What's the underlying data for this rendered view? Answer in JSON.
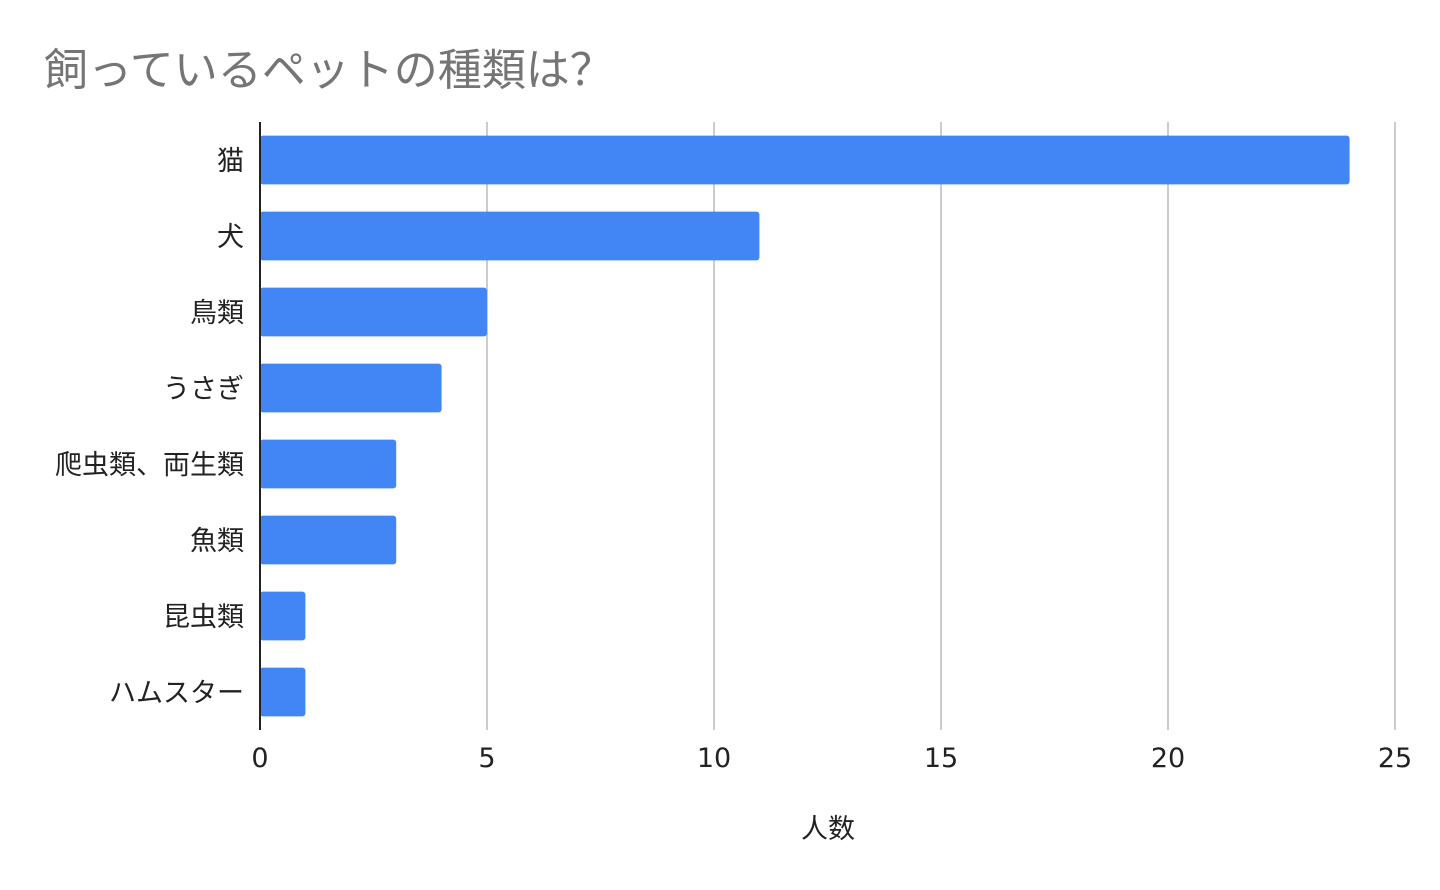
{
  "chart_data": {
    "type": "bar",
    "orientation": "horizontal",
    "title": "飼っているペットの種類は？",
    "xlabel": "人数",
    "ylabel": "",
    "categories": [
      "猫",
      "犬",
      "鳥類",
      "うさぎ",
      "爬虫類、両生類",
      "魚類",
      "昆虫類",
      "ハムスター"
    ],
    "values": [
      24,
      11,
      5,
      4,
      3,
      3,
      1,
      1
    ],
    "xlim": [
      0,
      25
    ],
    "xticks": [
      0,
      5,
      10,
      15,
      20,
      25
    ],
    "grid": true,
    "bar_color": "#4285f4",
    "grid_color": "#cccccc",
    "axis_color": "#222222"
  }
}
